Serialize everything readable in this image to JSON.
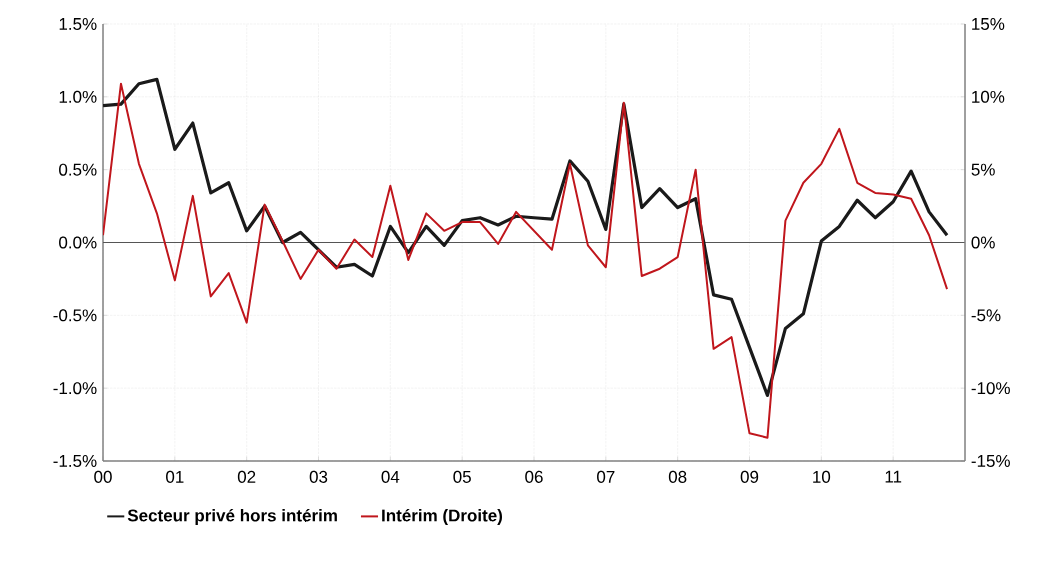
{
  "chart_data": {
    "type": "line",
    "x": [
      2000,
      2000.25,
      2000.5,
      2000.75,
      2001,
      2001.25,
      2001.5,
      2001.75,
      2002,
      2002.25,
      2002.5,
      2002.75,
      2003,
      2003.25,
      2003.5,
      2003.75,
      2004,
      2004.25,
      2004.5,
      2004.75,
      2005,
      2005.25,
      2005.5,
      2005.75,
      2006,
      2006.25,
      2006.5,
      2006.75,
      2007,
      2007.25,
      2007.5,
      2007.75,
      2008,
      2008.25,
      2008.5,
      2008.75,
      2009,
      2009.25,
      2009.5,
      2009.75,
      2010,
      2010.25,
      2010.5,
      2010.75,
      2011,
      2011.25,
      2011.5,
      2011.75
    ],
    "series": [
      {
        "name": "Secteur privé hors intérim",
        "color": "#1a1a1a",
        "values": [
          0.94,
          0.95,
          1.09,
          1.12,
          0.64,
          0.82,
          0.34,
          0.41,
          0.08,
          0.25,
          0.0,
          0.07,
          -0.05,
          -0.17,
          -0.15,
          -0.23,
          0.11,
          -0.07,
          0.11,
          -0.02,
          0.15,
          0.17,
          0.12,
          0.18,
          0.17,
          0.16,
          0.56,
          0.42,
          0.09,
          0.95,
          0.24,
          0.37,
          0.24,
          0.3,
          -0.36,
          -0.39,
          -0.72,
          -1.05,
          -0.59,
          -0.49,
          0.01,
          0.11,
          0.29,
          0.17,
          0.28,
          0.49,
          0.21,
          0.05
        ]
      },
      {
        "name": "Intérim (Droite)",
        "color": "#c0161c",
        "axis": "y2",
        "values": [
          0.5,
          10.9,
          5.4,
          2.0,
          -2.6,
          3.2,
          -3.7,
          -2.1,
          -5.5,
          2.6,
          0.1,
          -2.5,
          -0.5,
          -1.8,
          0.2,
          -1.0,
          3.9,
          -1.2,
          2.0,
          0.8,
          1.4,
          1.4,
          -0.1,
          2.1,
          0.8,
          -0.5,
          5.4,
          -0.2,
          -1.7,
          9.6,
          -2.3,
          -1.8,
          -1.0,
          5.0,
          -7.3,
          -6.5,
          -13.1,
          -13.4,
          1.5,
          4.1,
          5.4,
          7.8,
          4.1,
          3.4,
          3.3,
          3.0,
          0.5,
          -3.2
        ]
      }
    ],
    "xlim": [
      2000,
      2012
    ],
    "xticks": [
      {
        "value": 2000,
        "label": "00"
      },
      {
        "value": 2001,
        "label": "01"
      },
      {
        "value": 2002,
        "label": "02"
      },
      {
        "value": 2003,
        "label": "03"
      },
      {
        "value": 2004,
        "label": "04"
      },
      {
        "value": 2005,
        "label": "05"
      },
      {
        "value": 2006,
        "label": "06"
      },
      {
        "value": 2007,
        "label": "07"
      },
      {
        "value": 2008,
        "label": "08"
      },
      {
        "value": 2009,
        "label": "09"
      },
      {
        "value": 2010,
        "label": "10"
      },
      {
        "value": 2011,
        "label": "11"
      }
    ],
    "ylim": [
      -1.5,
      1.5
    ],
    "yticks": [
      {
        "value": -1.5,
        "label": "-1.5%"
      },
      {
        "value": -1.0,
        "label": "-1.0%"
      },
      {
        "value": -0.5,
        "label": "-0.5%"
      },
      {
        "value": 0,
        "label": "0.0%"
      },
      {
        "value": 0.5,
        "label": "0.5%"
      },
      {
        "value": 1.0,
        "label": "1.0%"
      },
      {
        "value": 1.5,
        "label": "1.5%"
      }
    ],
    "y2lim": [
      -15,
      15
    ],
    "y2ticks": [
      {
        "value": -15,
        "label": "-15%"
      },
      {
        "value": -10,
        "label": "-10%"
      },
      {
        "value": -5,
        "label": "-5%"
      },
      {
        "value": 0,
        "label": "0%"
      },
      {
        "value": 5,
        "label": "5%"
      },
      {
        "value": 10,
        "label": "10%"
      },
      {
        "value": 15,
        "label": "15%"
      }
    ],
    "ref_lines": [
      {
        "axis": "y",
        "value": 0,
        "color": "#555555"
      }
    ],
    "grid": true,
    "legend": "bottom left"
  }
}
